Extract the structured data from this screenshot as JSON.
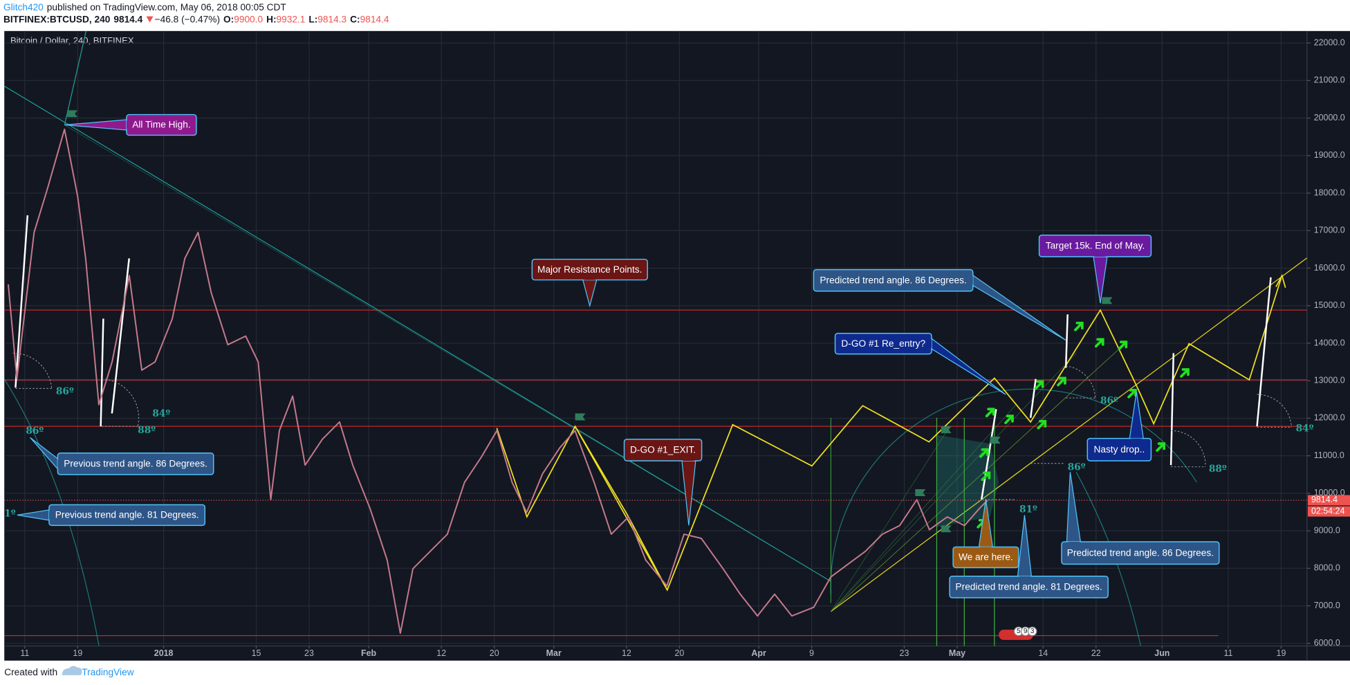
{
  "header": {
    "author": "Glitch420",
    "published": "published on TradingView.com, May 06, 2018 00:05 CDT",
    "symbol": "BITFINEX:BTCUSD, 240",
    "last": "9814.4",
    "change": "−46.8 (−0.47%)",
    "ohlc": [
      {
        "label": "O:",
        "value": "9900.0"
      },
      {
        "label": "H:",
        "value": "9932.1"
      },
      {
        "label": "L:",
        "value": "9814.3"
      },
      {
        "label": "C:",
        "value": "9814.4"
      }
    ]
  },
  "chart_data": {
    "type": "line",
    "title": "Bitcoin / Dollar, 240, BITFINEX",
    "color": "#c47a8a",
    "x": [
      -2.5,
      -1.2,
      1.4,
      3.4,
      6,
      8,
      9.2,
      11.2,
      13.2,
      15.8,
      17.7,
      19.7,
      22.3,
      24.2,
      26.2,
      28.2,
      30.7,
      33.4,
      35.3,
      37.2,
      38.5,
      40.5,
      42.4,
      45,
      47.6,
      49.6,
      52.2,
      54.8,
      56.8,
      58.7,
      61.3,
      63.9,
      66.5,
      69.1,
      71.4,
      73.7,
      75.9,
      78.3,
      80.9,
      83.2,
      86.1,
      88.7,
      91.3,
      93.9,
      97.1,
      99.7,
      102.3,
      105.6,
      108.2,
      110.8,
      113.4,
      116,
      119.3,
      121.9,
      124.5,
      127.1,
      129.7,
      132.3,
      134.9,
      136.8,
      139.5,
      142.1,
      144.4,
      145.6
    ],
    "values": [
      15570,
      13050,
      16950,
      18100,
      19700,
      17900,
      16260,
      12360,
      13500,
      15800,
      13280,
      13500,
      14650,
      16260,
      16950,
      15340,
      13960,
      14190,
      13500,
      9830,
      11670,
      12590,
      10750,
      11440,
      11900,
      10750,
      9600,
      8220,
      6270,
      7990,
      8450,
      8910,
      10290,
      10980,
      11670,
      10290,
      9490,
      10520,
      11210,
      11670,
      10290,
      8910,
      9370,
      8220,
      7530,
      8910,
      8800,
      7990,
      7310,
      6730,
      7310,
      6730,
      6960,
      7770,
      8110,
      8450,
      8910,
      9140,
      9830,
      9030,
      9370,
      9140,
      9600,
      9814.4
    ],
    "xlim": [
      -3.1,
      193.9
    ],
    "xticks": [
      {
        "value": 0,
        "label": "11"
      },
      {
        "value": 8,
        "label": "19"
      },
      {
        "value": 21,
        "label": "2018"
      },
      {
        "value": 35,
        "label": "15"
      },
      {
        "value": 43,
        "label": "23"
      },
      {
        "value": 52,
        "label": "Feb"
      },
      {
        "value": 63,
        "label": "12"
      },
      {
        "value": 71,
        "label": "20"
      },
      {
        "value": 80,
        "label": "Mar"
      },
      {
        "value": 91,
        "label": "12"
      },
      {
        "value": 99,
        "label": "20"
      },
      {
        "value": 111,
        "label": "Apr"
      },
      {
        "value": 119,
        "label": "9"
      },
      {
        "value": 133,
        "label": "23"
      },
      {
        "value": 141,
        "label": "May"
      },
      {
        "value": 154,
        "label": "14"
      },
      {
        "value": 162,
        "label": "22"
      },
      {
        "value": 172,
        "label": "Jun"
      },
      {
        "value": 182,
        "label": "11"
      },
      {
        "value": 190,
        "label": "19"
      }
    ],
    "ylim": [
      5930,
      22320
    ],
    "yticks": [
      {
        "value": 6000,
        "label": "6000.0"
      },
      {
        "value": 7000,
        "label": "7000.0"
      },
      {
        "value": 8000,
        "label": "8000.0"
      },
      {
        "value": 9000,
        "label": "9000.0"
      },
      {
        "value": 10000,
        "label": "10000.0"
      },
      {
        "value": 11000,
        "label": "11000.0"
      },
      {
        "value": 12000,
        "label": "12000.0"
      },
      {
        "value": 13000,
        "label": "13000.0"
      },
      {
        "value": 14000,
        "label": "14000.0"
      },
      {
        "value": 15000,
        "label": "15000.0"
      },
      {
        "value": 16000,
        "label": "16000.0"
      },
      {
        "value": 17000,
        "label": "17000.0"
      },
      {
        "value": 18000,
        "label": "18000.0"
      },
      {
        "value": 19000,
        "label": "19000.0"
      },
      {
        "value": 20000,
        "label": "20000.0"
      },
      {
        "value": 21000,
        "label": "21000.0"
      },
      {
        "value": 22000,
        "label": "22000.0"
      }
    ],
    "grid": true,
    "last_price": 9814.4,
    "countdown": "02:54:24"
  },
  "annotations": [
    "All Time High.",
    "Major Resistance Points.",
    "D-GO #1_EXIT.",
    "Predicted trend angle. 86 Degrees.",
    "Target 15k. End of May.",
    "D-GO #1 Re_entry?",
    "Previous trend angle. 86 Degrees.",
    "Previous trend angle. 81 Degrees.",
    "Nasty drop..",
    "Predicted trend angle. 86 Degrees.",
    "We are here.",
    "Predicted trend angle. 81 Degrees."
  ],
  "angle_labels": [
    "86º",
    "84º",
    "88º",
    "86º",
    "1º",
    "86º",
    "86º",
    "81º",
    "88º",
    "84º"
  ],
  "event_badges": [
    "5",
    "9",
    "3"
  ],
  "footer": {
    "created": "Created with",
    "brand": "TradingView"
  }
}
